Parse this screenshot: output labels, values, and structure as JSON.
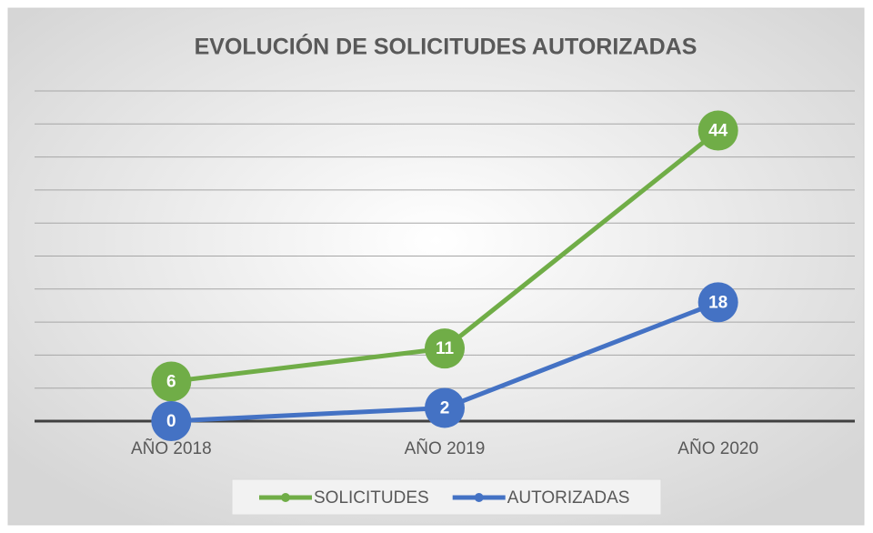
{
  "chart_data": {
    "type": "line",
    "title": "EVOLUCIÓN DE SOLICITUDES AUTORIZADAS",
    "categories": [
      "AÑO 2018",
      "AÑO 2019",
      "AÑO 2020"
    ],
    "series": [
      {
        "name": "SOLICITUDES",
        "color": "#70ad47",
        "values": [
          6,
          11,
          44
        ]
      },
      {
        "name": "AUTORIZADAS",
        "color": "#4472c4",
        "values": [
          0,
          2,
          18
        ]
      }
    ],
    "ylim": [
      0,
      50
    ],
    "yticks": [
      0,
      5,
      10,
      15,
      20,
      25,
      30,
      35,
      40,
      45,
      50
    ],
    "grid": true,
    "legend": "bottom"
  }
}
